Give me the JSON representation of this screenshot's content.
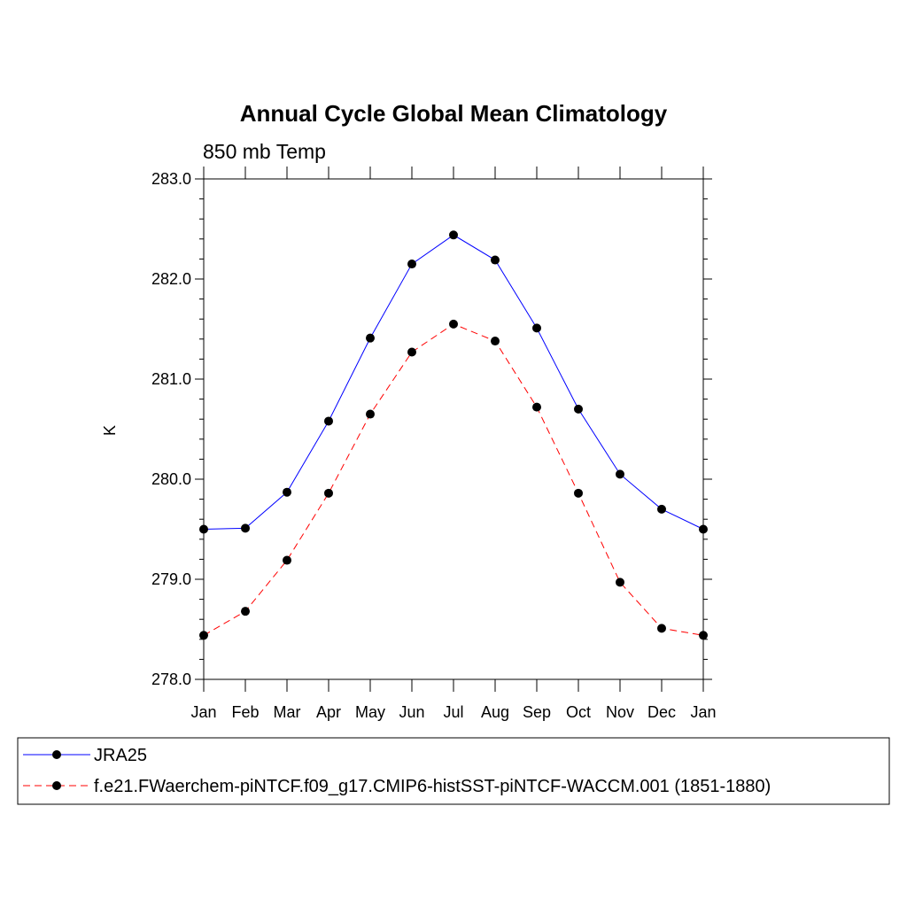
{
  "chart_data": {
    "type": "line",
    "title": "Annual Cycle Global Mean Climatology",
    "subtitle": "850 mb Temp",
    "xlabel": "",
    "ylabel": "K",
    "categories": [
      "Jan",
      "Feb",
      "Mar",
      "Apr",
      "May",
      "Jun",
      "Jul",
      "Aug",
      "Sep",
      "Oct",
      "Nov",
      "Dec",
      "Jan"
    ],
    "ylim": [
      278.0,
      283.0
    ],
    "yticks": [
      "278.0",
      "279.0",
      "280.0",
      "281.0",
      "282.0",
      "283.0"
    ],
    "grid": false,
    "legend_position": "bottom",
    "series": [
      {
        "name": "JRA25",
        "color": "#0000ff",
        "line_style": "solid",
        "values": [
          279.5,
          279.51,
          279.87,
          280.58,
          281.41,
          282.15,
          282.44,
          282.19,
          281.51,
          280.7,
          280.05,
          279.7,
          279.5
        ]
      },
      {
        "name": "f.e21.FWaerchem-piNTCF.f09_g17.CMIP6-histSST-piNTCF-WACCM.001 (1851-1880)",
        "color": "#ff0000",
        "line_style": "dashed",
        "values": [
          278.44,
          278.68,
          279.19,
          279.86,
          280.65,
          281.27,
          281.55,
          281.38,
          280.72,
          279.86,
          278.97,
          278.51,
          278.44
        ]
      }
    ]
  }
}
